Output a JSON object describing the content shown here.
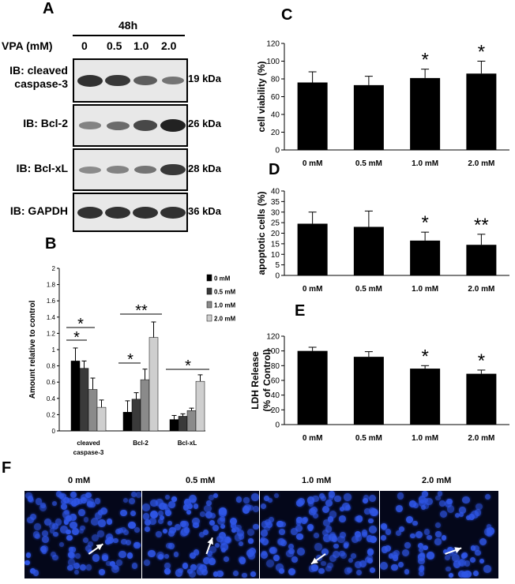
{
  "panel_letters": {
    "a": "A",
    "b": "B",
    "c": "C",
    "d": "D",
    "e": "E",
    "f": "F"
  },
  "panel_a": {
    "timepoint": "48h",
    "vpa_label": "VPA (mM)",
    "doses": [
      "0",
      "0.5",
      "1.0",
      "2.0"
    ],
    "blots": [
      {
        "label_line1": "IB: cleaved",
        "label_line2": "caspase-3",
        "kda": "19 kDa",
        "band_intensity": [
          0.9,
          0.85,
          0.6,
          0.45
        ]
      },
      {
        "label_line1": "IB: Bcl-2",
        "label_line2": "",
        "kda": "26 kDa",
        "band_intensity": [
          0.35,
          0.5,
          0.75,
          1.0
        ]
      },
      {
        "label_line1": "IB: Bcl-xL",
        "label_line2": "",
        "kda": "28 kDa",
        "band_intensity": [
          0.3,
          0.35,
          0.45,
          0.85
        ]
      },
      {
        "label_line1": "IB: GAPDH",
        "label_line2": "",
        "kda": "36 kDa",
        "band_intensity": [
          0.9,
          0.9,
          0.9,
          0.9
        ]
      }
    ]
  },
  "chart_data": [
    {
      "id": "B",
      "type": "bar",
      "ylabel": "Amount relative to control",
      "ylim": [
        0,
        2
      ],
      "yticks": [
        "0",
        "0.2",
        "0.4",
        "0.6",
        "0.8",
        "1",
        "1.2",
        "1.4",
        "1.6",
        "1.8",
        "2"
      ],
      "categories": [
        "cleaved caspase-3",
        "Bcl-2",
        "Bcl-xL"
      ],
      "category_lines": [
        [
          "cleaved",
          "caspase-3"
        ],
        [
          "Bcl-2"
        ],
        [
          "Bcl-xL"
        ]
      ],
      "series": [
        {
          "name": "0 mM",
          "color": "#000000",
          "values": [
            0.86,
            0.23,
            0.14
          ],
          "errors": [
            0.16,
            0.14,
            0.05
          ]
        },
        {
          "name": "0.5 mM",
          "color": "#3a3a3a",
          "values": [
            0.77,
            0.39,
            0.18
          ],
          "errors": [
            0.09,
            0.08,
            0.03
          ]
        },
        {
          "name": "1.0 mM",
          "color": "#8a8a8a",
          "values": [
            0.51,
            0.63,
            0.25
          ],
          "errors": [
            0.14,
            0.13,
            0.03
          ]
        },
        {
          "name": "2.0 mM",
          "color": "#cfcfcf",
          "values": [
            0.29,
            1.15,
            0.61
          ],
          "errors": [
            0.09,
            0.19,
            0.08
          ]
        }
      ],
      "significance": [
        {
          "category": 0,
          "label": "*"
        },
        {
          "category": 0,
          "label": "*"
        },
        {
          "category": 1,
          "label": "*"
        },
        {
          "category": 1,
          "label": "**"
        },
        {
          "category": 2,
          "label": "*"
        }
      ],
      "legend_position": "top-right"
    },
    {
      "id": "C",
      "type": "bar",
      "ylabel": "cell viability (%)",
      "ylim": [
        0,
        120
      ],
      "yticks": [
        "0",
        "20",
        "40",
        "60",
        "80",
        "100",
        "120"
      ],
      "categories": [
        "0 mM",
        "0.5 mM",
        "1.0 mM",
        "2.0 mM"
      ],
      "values": [
        76,
        73,
        81,
        86
      ],
      "errors": [
        12,
        10,
        10,
        14
      ],
      "annotations": [
        "",
        "",
        "*",
        "*"
      ]
    },
    {
      "id": "D",
      "type": "bar",
      "ylabel": "apoptotic cells (%)",
      "ylim": [
        0,
        40
      ],
      "yticks": [
        "0",
        "5",
        "10",
        "15",
        "20",
        "25",
        "30",
        "35",
        "40"
      ],
      "categories": [
        "0 mM",
        "0.5 mM",
        "1.0 mM",
        "2.0 mM"
      ],
      "values": [
        24.5,
        23,
        16.5,
        14.5
      ],
      "errors": [
        5.5,
        7.5,
        4,
        5
      ],
      "annotations": [
        "",
        "",
        "*",
        "**"
      ]
    },
    {
      "id": "E",
      "type": "bar",
      "ylabel_line1": "LDH Release",
      "ylabel_line2": "(% of Control)",
      "ylim": [
        0,
        120
      ],
      "yticks": [
        "0",
        "20",
        "40",
        "60",
        "80",
        "100",
        "120"
      ],
      "categories": [
        "0 mM",
        "0.5 mM",
        "1.0 mM",
        "2.0 mM"
      ],
      "values": [
        100,
        92,
        76,
        69
      ],
      "errors": [
        5,
        7,
        4,
        5
      ],
      "annotations": [
        "",
        "",
        "*",
        "*"
      ]
    }
  ],
  "panel_f": {
    "images": [
      {
        "title": "0 mM",
        "arrow_angle": -35
      },
      {
        "title": "0.5 mM",
        "arrow_angle": -70
      },
      {
        "title": "1.0 mM",
        "arrow_angle": -215
      },
      {
        "title": "2.0 mM",
        "arrow_angle": -20
      }
    ],
    "colors": {
      "background": "#04071a",
      "nucleus": "#2f56e6",
      "arrow": "#ffffff"
    }
  }
}
